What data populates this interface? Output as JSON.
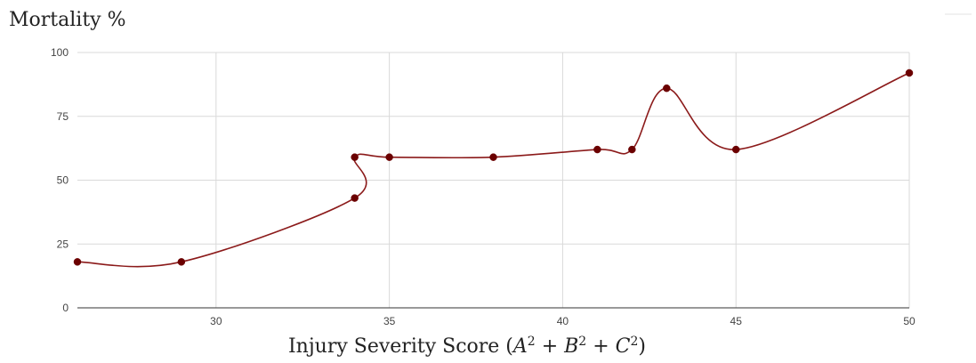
{
  "chart_data": {
    "type": "line",
    "title": "Mortality %",
    "xlabel": "Injury Severity Score (A² + B² + C²)",
    "xlabel_parts": {
      "prefix": "Injury Severity Score (",
      "a": "A",
      "b": "B",
      "c": "C",
      "exp": "2",
      "plus": " + ",
      "suffix": ")"
    },
    "ylabel": "",
    "xlim": [
      26,
      50
    ],
    "ylim": [
      0,
      100
    ],
    "x_ticks": [
      30,
      35,
      40,
      45,
      50
    ],
    "y_ticks": [
      0,
      25,
      50,
      75,
      100
    ],
    "grid": true,
    "smooth": true,
    "series": [
      {
        "color": "#8b1a1a",
        "marker_color": "#6b0000",
        "points": [
          {
            "x": 26,
            "y": 18
          },
          {
            "x": 29,
            "y": 18
          },
          {
            "x": 34,
            "y": 43
          },
          {
            "x": 34,
            "y": 59
          },
          {
            "x": 35,
            "y": 59
          },
          {
            "x": 38,
            "y": 59
          },
          {
            "x": 41,
            "y": 62
          },
          {
            "x": 42,
            "y": 62
          },
          {
            "x": 43,
            "y": 86
          },
          {
            "x": 45,
            "y": 62
          },
          {
            "x": 50,
            "y": 92
          }
        ]
      }
    ]
  }
}
